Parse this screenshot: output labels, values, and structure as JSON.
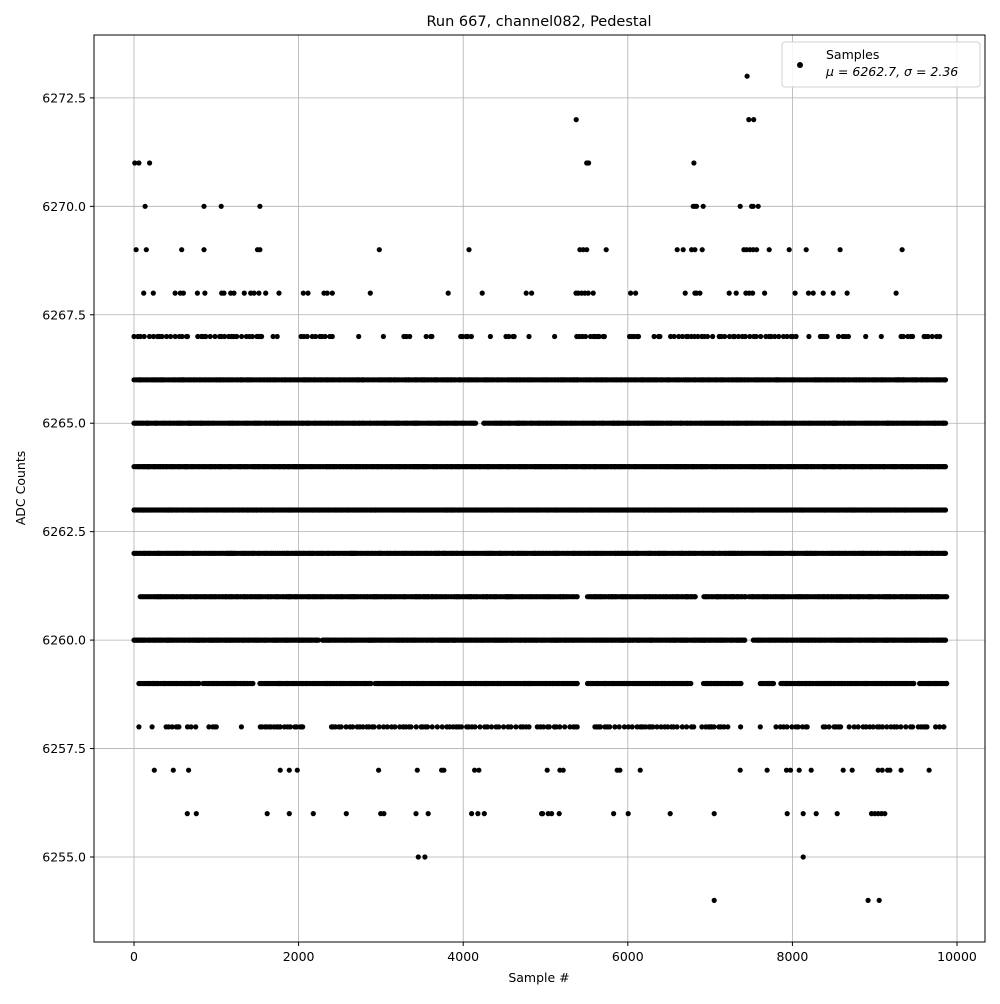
{
  "chart_data": {
    "type": "scatter",
    "title": "Run 667, channel082, Pedestal",
    "xlabel": "Sample #",
    "ylabel": "ADC Counts",
    "xlim": [
      -486,
      10340
    ],
    "ylim": [
      6253.04,
      6273.95
    ],
    "x_ticks": [
      0,
      2000,
      4000,
      6000,
      8000,
      10000
    ],
    "x_tick_labels": [
      "0",
      "2000",
      "4000",
      "6000",
      "8000",
      "10000"
    ],
    "y_ticks": [
      6255.0,
      6257.5,
      6260.0,
      6262.5,
      6265.0,
      6267.5,
      6270.0,
      6272.5
    ],
    "y_tick_labels": [
      "6255.0",
      "6257.5",
      "6260.0",
      "6262.5",
      "6265.0",
      "6267.5",
      "6270.0",
      "6272.5"
    ],
    "grid": true,
    "marker_color": "#000000",
    "grid_color": "#b0b0b0",
    "legend": {
      "placement": "top-right",
      "series_name": "Samples",
      "stats_text": "μ = 6262.7, σ = 2.36"
    },
    "points": [
      {
        "y": 6273,
        "x": [
          7450
        ]
      },
      {
        "y": 6272,
        "x": [
          5373,
          7470,
          7530
        ]
      },
      {
        "y": 6271,
        "x": [
          10,
          60,
          190,
          5500,
          5524,
          6803
        ]
      },
      {
        "y": 6270,
        "x": [
          135,
          850,
          1060,
          1530,
          6794,
          6815,
          6835,
          6916,
          7365,
          7504,
          7523,
          7584
        ]
      },
      {
        "y": 6269,
        "x": [
          25,
          150,
          580,
          850,
          1500,
          1530,
          2980,
          4070,
          5418,
          5458,
          5500,
          5738,
          6600,
          6673,
          6775,
          6815,
          6904,
          7410,
          7443,
          7483,
          7524,
          7565,
          7718,
          7961,
          8167,
          8580,
          9333
        ]
      },
      {
        "y": 6268,
        "x": [
          118,
          235,
          500,
          563,
          600,
          770,
          862,
          1065,
          1093,
          1175,
          1215,
          1340,
          1418,
          1458,
          1518,
          1600,
          1762,
          2057,
          2114,
          2308,
          2348,
          2409,
          2871,
          3818,
          4231,
          4766,
          4831,
          5370,
          5398,
          5438,
          5478,
          5519,
          5580,
          6034,
          6095,
          6697,
          6815,
          6835,
          6876,
          7232,
          7317,
          7435,
          7475,
          7516,
          7662,
          8033,
          8196,
          8252,
          8374,
          8495,
          8665,
          9260
        ]
      },
      {
        "y": 6257,
        "x": [
          247,
          478,
          664,
          1777,
          1887,
          1984,
          2972,
          3442,
          3737,
          3766,
          4139,
          4191,
          5021,
          5175,
          5215,
          5871,
          5904,
          6150,
          7365,
          7693,
          7928,
          7977,
          8082,
          8228,
          8617,
          8726,
          9042,
          9091,
          9156,
          9184,
          9321,
          9661
        ]
      },
      {
        "y": 6256,
        "x": [
          648,
          757,
          1619,
          1887,
          2178,
          2579,
          2997,
          3037,
          3426,
          3575,
          4102,
          4179,
          4256,
          4953,
          4965,
          5033,
          5074,
          5166,
          5827,
          6005,
          6515,
          7050,
          7937,
          8131,
          8289,
          8544,
          8961,
          9002,
          9042,
          9083,
          9123
        ]
      },
      {
        "y": 6255,
        "x": [
          3454,
          3535,
          8131
        ]
      },
      {
        "y": 6254,
        "x": [
          7050,
          8920,
          9054
        ]
      }
    ],
    "dense_rows": [
      {
        "y": 6267,
        "density": "sparse",
        "ranges": [
          [
            0,
            340
          ],
          [
            395,
            650
          ],
          [
            775,
            1550
          ],
          [
            1690,
            1690
          ],
          [
            1740,
            1740
          ],
          [
            2030,
            2410
          ],
          [
            2730,
            2730
          ],
          [
            3030,
            3030
          ],
          [
            3280,
            3350
          ],
          [
            3550,
            3620
          ],
          [
            3970,
            4100
          ],
          [
            4330,
            4330
          ],
          [
            4520,
            4620
          ],
          [
            4800,
            4800
          ],
          [
            5110,
            5110
          ],
          [
            5380,
            5715
          ],
          [
            6020,
            6130
          ],
          [
            6320,
            6390
          ],
          [
            6520,
            7030
          ],
          [
            7110,
            8045
          ],
          [
            8200,
            8200
          ],
          [
            8340,
            8420
          ],
          [
            8560,
            8680
          ],
          [
            8890,
            8890
          ],
          [
            9080,
            9080
          ],
          [
            9320,
            9460
          ],
          [
            9600,
            9790
          ]
        ]
      },
      {
        "y": 6266,
        "density": "dense",
        "ranges": [
          [
            0,
            9860
          ]
        ]
      },
      {
        "y": 6265,
        "density": "dense",
        "ranges": [
          [
            0,
            4150
          ],
          [
            4250,
            9860
          ]
        ]
      },
      {
        "y": 6264,
        "density": "dense",
        "ranges": [
          [
            0,
            9860
          ]
        ]
      },
      {
        "y": 6263,
        "density": "dense",
        "ranges": [
          [
            0,
            9860
          ]
        ]
      },
      {
        "y": 6262,
        "density": "dense",
        "ranges": [
          [
            0,
            9860
          ]
        ]
      },
      {
        "y": 6261,
        "density": "dense",
        "ranges": [
          [
            75,
            5385
          ],
          [
            5510,
            6820
          ],
          [
            6925,
            7430
          ],
          [
            7470,
            9875
          ]
        ]
      },
      {
        "y": 6260,
        "density": "dense",
        "ranges": [
          [
            0,
            2240
          ],
          [
            2290,
            7420
          ],
          [
            7525,
            9860
          ]
        ]
      },
      {
        "y": 6259,
        "density": "dense",
        "ranges": [
          [
            60,
            790
          ],
          [
            840,
            1445
          ],
          [
            1530,
            2880
          ],
          [
            2930,
            5385
          ],
          [
            5510,
            6765
          ],
          [
            6920,
            7375
          ],
          [
            7610,
            7770
          ],
          [
            7860,
            9475
          ],
          [
            9545,
            9875
          ]
        ]
      },
      {
        "y": 6258,
        "density": "sparse",
        "ranges": [
          [
            60,
            60
          ],
          [
            220,
            220
          ],
          [
            390,
            545
          ],
          [
            650,
            750
          ],
          [
            910,
            1000
          ],
          [
            1305,
            1305
          ],
          [
            1535,
            2050
          ],
          [
            2400,
            4800
          ],
          [
            4900,
            5385
          ],
          [
            5600,
            6800
          ],
          [
            6900,
            7215
          ],
          [
            7370,
            7370
          ],
          [
            7610,
            7610
          ],
          [
            7800,
            8180
          ],
          [
            8375,
            8585
          ],
          [
            8690,
            9460
          ],
          [
            9530,
            9635
          ],
          [
            9740,
            9840
          ]
        ]
      }
    ]
  }
}
